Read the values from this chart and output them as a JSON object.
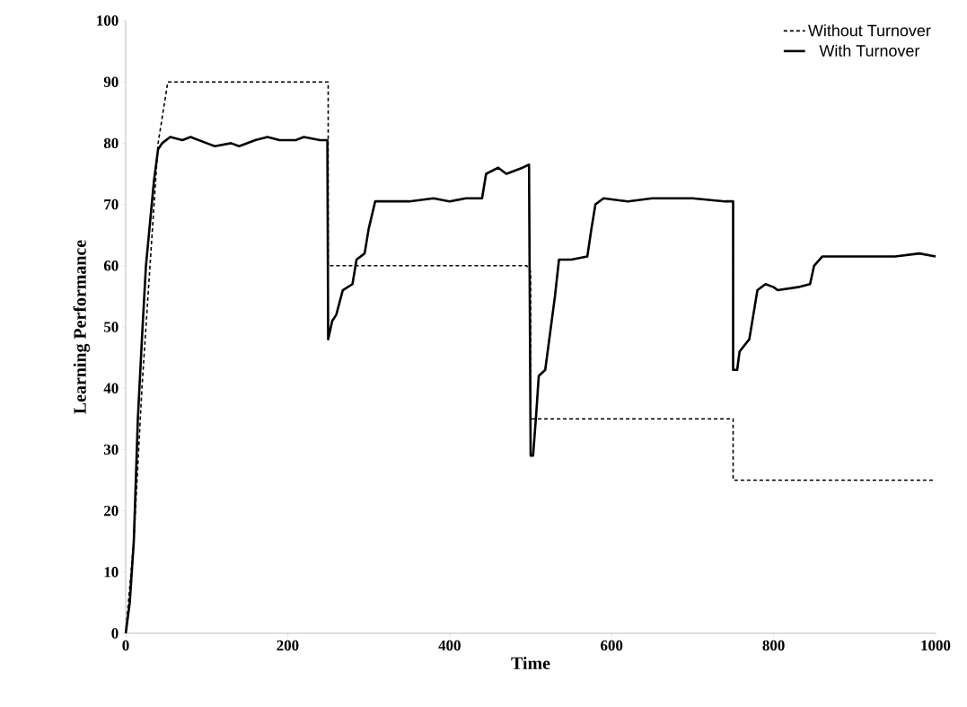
{
  "chart_data": {
    "type": "line",
    "xlabel": "Time",
    "ylabel": "Learning Performance",
    "xlim": [
      0,
      1000
    ],
    "xticks": [
      0,
      200,
      400,
      600,
      800,
      1000
    ],
    "ylim": [
      0,
      100
    ],
    "yticks": [
      0,
      10,
      20,
      30,
      40,
      50,
      60,
      70,
      80,
      90,
      100
    ],
    "grid": false,
    "legend": "top right",
    "marker": "none",
    "series": [
      {
        "name": "Without Turnover",
        "color": "#000000",
        "line_style": "dashed",
        "x": [
          0,
          10,
          20,
          40,
          52,
          250,
          250,
          495,
          500,
          500,
          750,
          750,
          1000
        ],
        "values": [
          0,
          15,
          40,
          80,
          90,
          90,
          60,
          60,
          59,
          35,
          35,
          25,
          25
        ]
      },
      {
        "name": "With Turnover",
        "color": "#000000",
        "line_style": "solid",
        "x": [
          0,
          5,
          10,
          15,
          20,
          25,
          30,
          35,
          40,
          45,
          55,
          70,
          80,
          100,
          110,
          130,
          140,
          160,
          175,
          190,
          210,
          220,
          240,
          249,
          250,
          255,
          260,
          268,
          280,
          285,
          295,
          300,
          308,
          320,
          350,
          380,
          400,
          420,
          440,
          445,
          460,
          470,
          490,
          498,
          500,
          503,
          507,
          510,
          518,
          525,
          530,
          535,
          550,
          570,
          575,
          580,
          590,
          620,
          650,
          700,
          740,
          750,
          750,
          755,
          758,
          770,
          775,
          780,
          790,
          800,
          805,
          830,
          845,
          850,
          860,
          880,
          900,
          950,
          980,
          1000
        ],
        "values": [
          0,
          5,
          15,
          35,
          48,
          60,
          67,
          74,
          79,
          80,
          81,
          80.5,
          81,
          80,
          79.5,
          80,
          79.5,
          80.5,
          81,
          80.5,
          80.5,
          81,
          80.5,
          80.5,
          48,
          51,
          52,
          56,
          57,
          61,
          62,
          66,
          70.5,
          70.5,
          70.5,
          71,
          70.5,
          71,
          71,
          75,
          76,
          75,
          76,
          76.5,
          29,
          29,
          36,
          42,
          43,
          50,
          55,
          61,
          61,
          61.5,
          66,
          70,
          71,
          70.5,
          71,
          71,
          70.5,
          70.5,
          43,
          43,
          46,
          48,
          52,
          56,
          57,
          56.5,
          56,
          56.5,
          57,
          60,
          61.5,
          61.5,
          61.5,
          61.5,
          62,
          61.5
        ]
      }
    ]
  }
}
